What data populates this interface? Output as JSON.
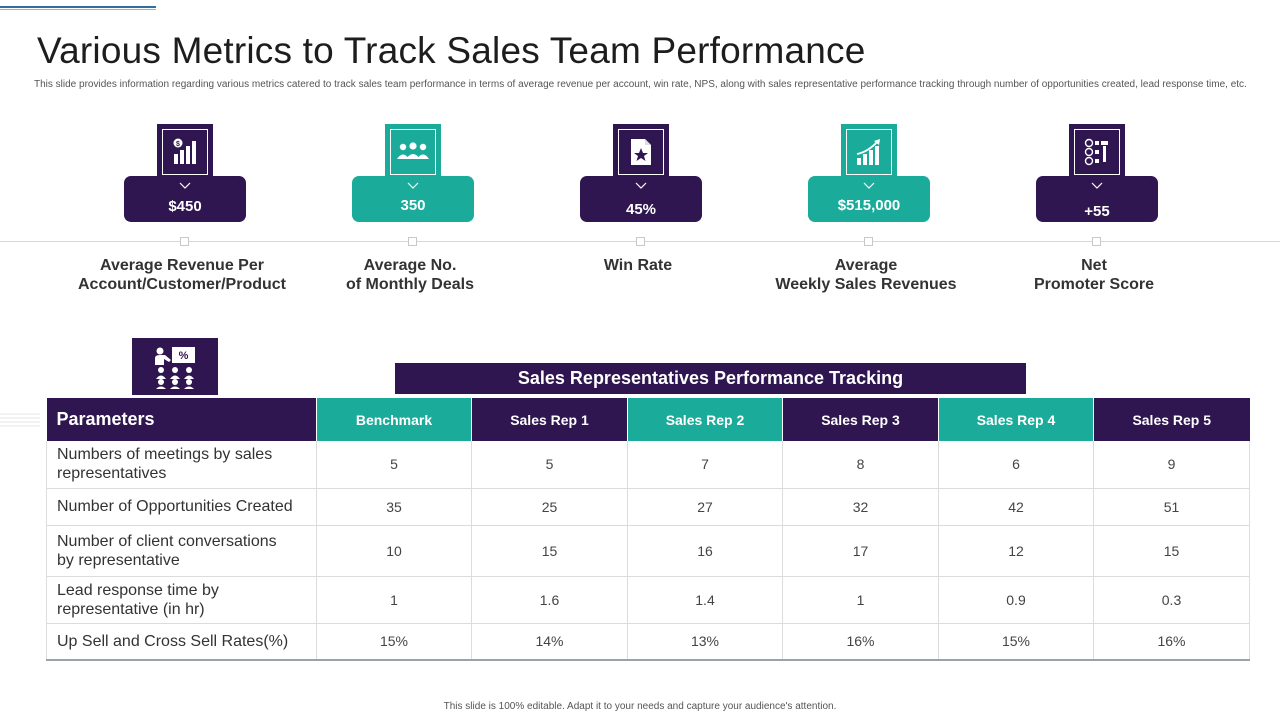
{
  "title": "Various Metrics to Track Sales Team Performance",
  "subtitle": "This slide provides information regarding various metrics catered to track sales team performance in terms of average revenue per account, win rate, NPS, along with sales representative performance tracking through number of opportunities created, lead response time, etc.",
  "colors": {
    "purple": "#2f1650",
    "teal": "#1bab9b"
  },
  "metrics": [
    {
      "icon": "dollar-bar-chart-icon",
      "value": "$450",
      "label_line1": "Average Revenue Per",
      "label_line2": "Account/Customer/Product",
      "color": "purple"
    },
    {
      "icon": "team-group-icon",
      "value": "350",
      "label_line1": "Average No.",
      "label_line2": "of Monthly Deals",
      "color": "teal"
    },
    {
      "icon": "star-document-icon",
      "value": "45%",
      "label_line1": "Win Rate",
      "label_line2": "",
      "color": "purple"
    },
    {
      "icon": "growth-chart-icon",
      "value": "$515,000",
      "label_line1": "Average",
      "label_line2": "Weekly Sales Revenues",
      "color": "teal"
    },
    {
      "icon": "score-board-icon",
      "value": "+55",
      "label_line1": "Net",
      "label_line2": "Promoter Score",
      "color": "purple"
    }
  ],
  "table": {
    "title": "Sales Representatives Performance Tracking",
    "headers": [
      "Parameters",
      "Benchmark",
      "Sales Rep 1",
      "Sales Rep 2",
      "Sales Rep 3",
      "Sales Rep 4",
      "Sales Rep 5"
    ],
    "rows": [
      {
        "param_line1": "Numbers of meetings by sales",
        "param_line2": "representatives",
        "values": [
          "5",
          "5",
          "7",
          "8",
          "6",
          "9"
        ]
      },
      {
        "param_line1": "Number of Opportunities Created",
        "param_line2": "",
        "values": [
          "35",
          "25",
          "27",
          "32",
          "42",
          "51"
        ]
      },
      {
        "param_line1": "Number of client conversations",
        "param_line2": "by representative",
        "values": [
          "10",
          "15",
          "16",
          "17",
          "12",
          "15"
        ]
      },
      {
        "param_line1": "Lead response time by",
        "param_line2": "representative (in hr)",
        "values": [
          "1",
          "1.6",
          "1.4",
          "1",
          "0.9",
          "0.3"
        ]
      },
      {
        "param_line1": "Up Sell and Cross Sell Rates(%)",
        "param_line2": "",
        "values": [
          "15%",
          "14%",
          "13%",
          "16%",
          "15%",
          "16%"
        ]
      }
    ]
  },
  "footer": "This slide is 100% editable. Adapt it to your needs and capture your audience's attention."
}
